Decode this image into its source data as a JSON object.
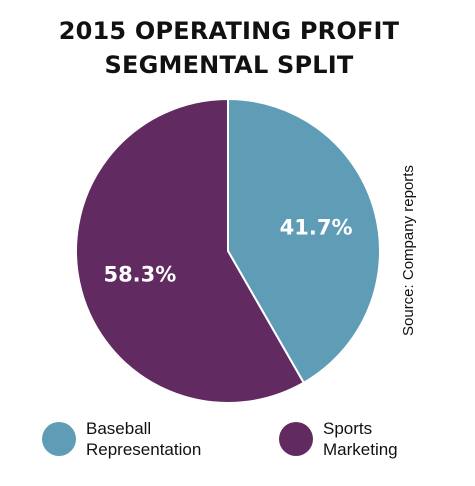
{
  "title_line1": "2015 OPERATING PROFIT",
  "title_line2": "SEGMENTAL SPLIT",
  "source": "Source: Company reports",
  "colors": {
    "baseball": "#5f9db6",
    "sports": "#612a61"
  },
  "chart_data": {
    "type": "pie",
    "title": "2015 OPERATING PROFIT SEGMENTAL SPLIT",
    "slices": [
      {
        "label": "Baseball Representation",
        "value": 41.7,
        "display": "41.7%",
        "color": "#5f9db6"
      },
      {
        "label": "Sports Marketing",
        "value": 58.3,
        "display": "58.3%",
        "color": "#612a61"
      }
    ],
    "legend_placement": "bottom"
  },
  "legend": {
    "baseball_line1": "Baseball",
    "baseball_line2": "Representation",
    "sports_line1": "Sports",
    "sports_line2": "Marketing"
  }
}
